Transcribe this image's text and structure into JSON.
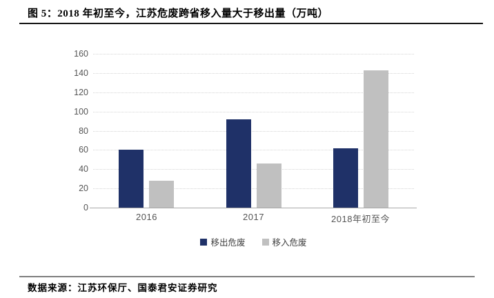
{
  "page": {
    "title": "图 5：2018 年初至今，江苏危废跨省移入量大于移出量（万吨）",
    "source": "数据来源：江苏环保厅、国泰君安证券研究"
  },
  "colors": {
    "bar_out": "#1f3168",
    "bar_in": "#c0c0c0",
    "gridline": "#d4d4d4",
    "axis": "#a6a6a6",
    "tick_text": "#545454",
    "title_rule": "#141414",
    "footer_rule": "#7d7d7d"
  },
  "chart_data": {
    "type": "bar",
    "title": "2018 年初至今，江苏危废跨省移入量大于移出量（万吨）",
    "categories": [
      "2016",
      "2017",
      "2018年初至今"
    ],
    "series": [
      {
        "name": "移出危废",
        "color": "#1f3168",
        "values": [
          60,
          92,
          62
        ]
      },
      {
        "name": "移入危废",
        "color": "#c0c0c0",
        "values": [
          28,
          46,
          143
        ]
      }
    ],
    "xlabel": "",
    "ylabel": "",
    "ylim": [
      0,
      160
    ],
    "ytick_step": 20,
    "grid": "horizontal-dotted",
    "legend_position": "bottom-center",
    "unit": "万吨"
  }
}
